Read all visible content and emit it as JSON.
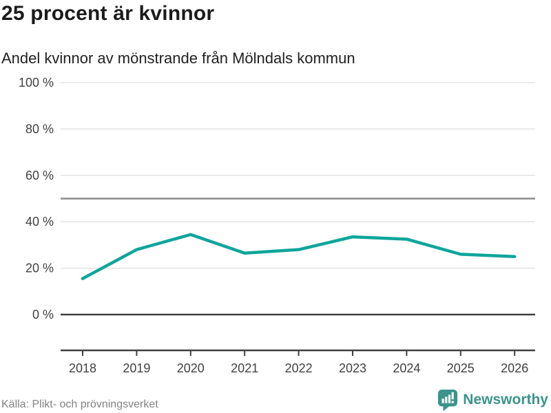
{
  "header": {
    "title": "25 procent är kvinnor",
    "subtitle": "Andel kvinnor av mönstrande från Mölndals kommun"
  },
  "footer": {
    "source": "Källa: Plikt- och prövningsverket",
    "brand": "Newsworthy"
  },
  "colors": {
    "line": "#0ea59b",
    "brand": "#3a948c",
    "grid_light": "#e2e2e2",
    "reference_line": "#8a8a8a",
    "axis_dark": "#3f3f3f",
    "axis_text": "#404040",
    "title_text": "#1b1b1b",
    "source_text": "#828282"
  },
  "chart_data": {
    "type": "line",
    "title": "25 procent är kvinnor",
    "subtitle": "Andel kvinnor av mönstrande från Mölndals kommun",
    "source": "Källa: Plikt- och prövningsverket",
    "x": [
      2018,
      2019,
      2020,
      2021,
      2022,
      2023,
      2024,
      2025,
      2026
    ],
    "xtick_labels": [
      "2018",
      "2019",
      "2020",
      "2021",
      "2022",
      "2023",
      "2024",
      "2025",
      "2026"
    ],
    "series": [
      {
        "name": "Andel kvinnor av mönstrande",
        "values": [
          15.5,
          28,
          34.5,
          26.5,
          28,
          33.5,
          32.5,
          26,
          25
        ]
      }
    ],
    "ylim": [
      0,
      100
    ],
    "yticks": [
      0,
      20,
      40,
      60,
      80,
      100
    ],
    "ytick_labels": [
      "0 %",
      "20 %",
      "40 %",
      "60 %",
      "80 %",
      "100 %"
    ],
    "reference_line_value": 50,
    "grid": "horizontal",
    "legend": false
  }
}
